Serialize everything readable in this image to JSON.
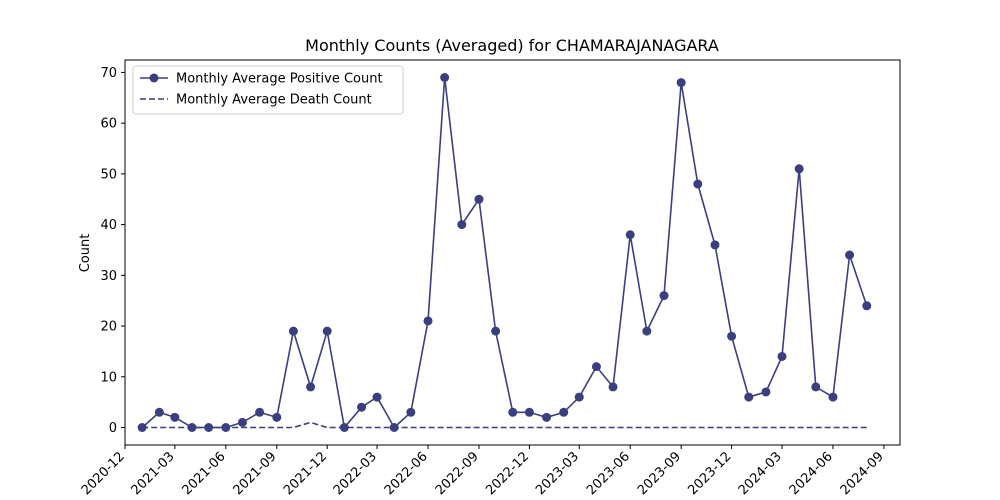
{
  "chart_data": {
    "type": "line",
    "title": "Monthly Counts (Averaged) for CHAMARAJANAGARA",
    "xlabel": "",
    "ylabel": "Count",
    "ylim": [
      -3.45,
      72.45
    ],
    "xlim": [
      "2020-12-01",
      "2024-09-30"
    ],
    "grid": false,
    "legend_position": "top-left",
    "x_ticks": [
      "2020-12",
      "2021-03",
      "2021-06",
      "2021-09",
      "2021-12",
      "2022-03",
      "2022-06",
      "2022-09",
      "2022-12",
      "2023-03",
      "2023-06",
      "2023-09",
      "2023-12",
      "2024-03",
      "2024-06",
      "2024-09"
    ],
    "y_ticks": [
      0,
      10,
      20,
      30,
      40,
      50,
      60,
      70
    ],
    "x": [
      "2021-01",
      "2021-02",
      "2021-03",
      "2021-04",
      "2021-05",
      "2021-06",
      "2021-07",
      "2021-08",
      "2021-09",
      "2021-10",
      "2021-11",
      "2021-12",
      "2022-01",
      "2022-02",
      "2022-03",
      "2022-04",
      "2022-05",
      "2022-06",
      "2022-07",
      "2022-08",
      "2022-09",
      "2022-10",
      "2022-11",
      "2022-12",
      "2023-01",
      "2023-02",
      "2023-03",
      "2023-04",
      "2023-05",
      "2023-06",
      "2023-07",
      "2023-08",
      "2023-09",
      "2023-10",
      "2023-11",
      "2023-12",
      "2024-01",
      "2024-02",
      "2024-03",
      "2024-04",
      "2024-05",
      "2024-06",
      "2024-07",
      "2024-08"
    ],
    "series": [
      {
        "name": "Monthly Average Positive Count",
        "style": "solid-marker",
        "color": "#3b3f80",
        "values": [
          0,
          3,
          2,
          0,
          0,
          0,
          1,
          3,
          2,
          19,
          8,
          19,
          0,
          4,
          6,
          0,
          3,
          21,
          69,
          40,
          45,
          19,
          3,
          3,
          2,
          3,
          6,
          12,
          8,
          38,
          19,
          26,
          68,
          48,
          36,
          18,
          6,
          7,
          14,
          51,
          8,
          6,
          34,
          24
        ]
      },
      {
        "name": "Monthly Average Death Count",
        "style": "dashed",
        "color": "#3b3f80",
        "values": [
          0,
          0,
          0,
          0,
          0,
          0,
          0,
          0,
          0,
          0,
          1,
          0,
          0,
          0,
          0,
          0,
          0,
          0,
          0,
          0,
          0,
          0,
          0,
          0,
          0,
          0,
          0,
          0,
          0,
          0,
          0,
          0,
          0,
          0,
          0,
          0,
          0,
          0,
          0,
          0,
          0,
          0,
          0,
          0
        ]
      }
    ]
  }
}
